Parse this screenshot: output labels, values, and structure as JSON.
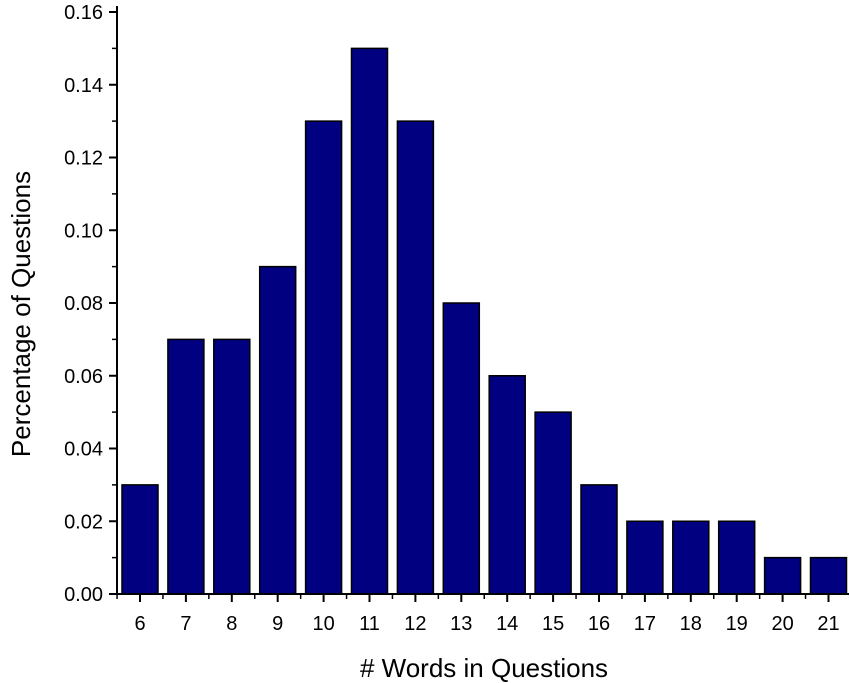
{
  "chart_data": {
    "type": "bar",
    "title": "",
    "xlabel": "# Words in Questions",
    "ylabel": "Percentage of Questions",
    "categories": [
      "6",
      "7",
      "8",
      "9",
      "10",
      "11",
      "12",
      "13",
      "14",
      "15",
      "16",
      "17",
      "18",
      "19",
      "20",
      "21"
    ],
    "values": [
      0.03,
      0.07,
      0.07,
      0.09,
      0.13,
      0.15,
      0.13,
      0.08,
      0.06,
      0.05,
      0.03,
      0.02,
      0.02,
      0.02,
      0.01,
      0.01
    ],
    "ylim": [
      0,
      0.16
    ],
    "yticks": [
      "0.00",
      "0.02",
      "0.04",
      "0.06",
      "0.08",
      "0.10",
      "0.12",
      "0.14",
      "0.16"
    ],
    "ytick_values": [
      0,
      0.02,
      0.04,
      0.06,
      0.08,
      0.1,
      0.12,
      0.14,
      0.16
    ],
    "grid": false,
    "legend": "none",
    "bar_color": "#000080",
    "bar_edge_color": "#000000"
  }
}
